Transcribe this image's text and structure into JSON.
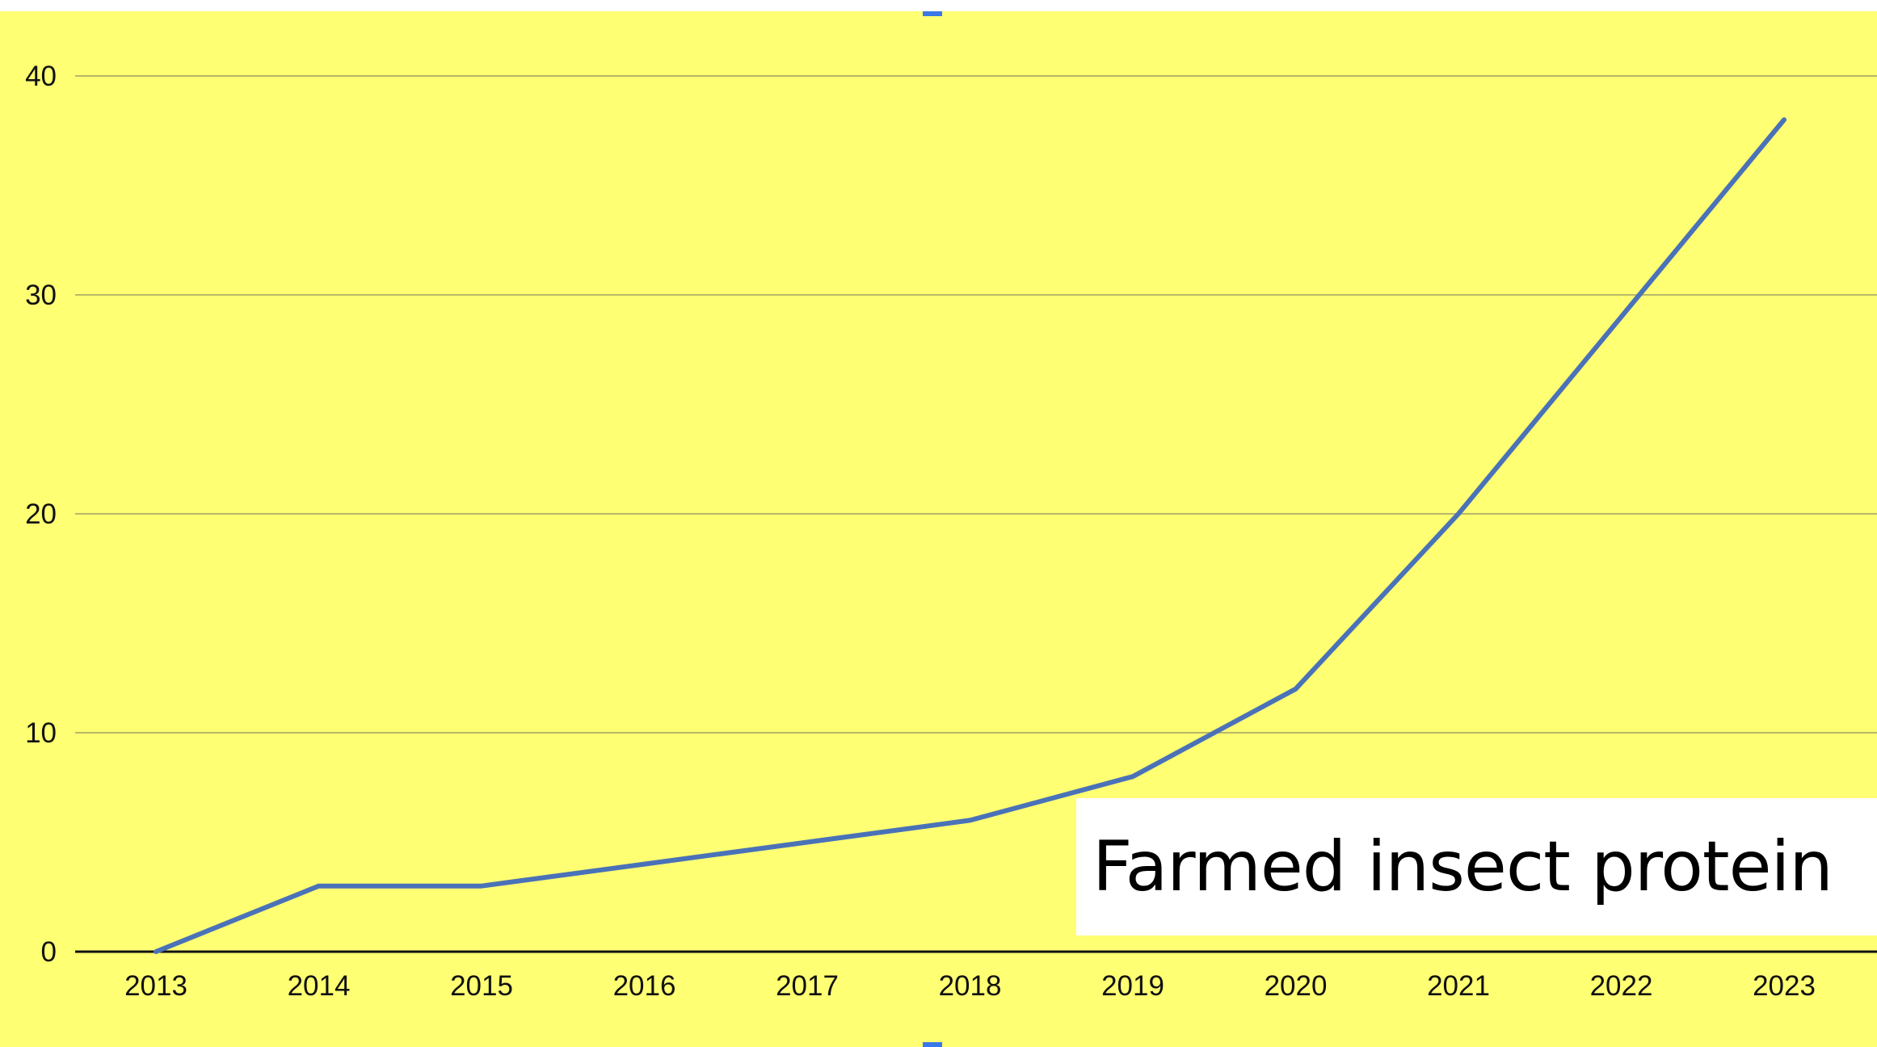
{
  "chart_data": {
    "type": "line",
    "title": "",
    "xlabel": "",
    "ylabel": "",
    "x": [
      "2013",
      "2014",
      "2015",
      "2016",
      "2017",
      "2018",
      "2019",
      "2020",
      "2021",
      "2022",
      "2023"
    ],
    "series": [
      {
        "values": [
          0,
          3,
          3,
          4,
          5,
          6,
          8,
          12,
          20,
          29,
          38
        ]
      }
    ],
    "ylim": [
      0,
      40
    ],
    "yticks": [
      0,
      10,
      20,
      30,
      40
    ],
    "grid": true,
    "legend": "none",
    "annotation": "Farmed insect protein",
    "colors": {
      "background": "#ffff73",
      "line": "#4a72b8",
      "grid": "#b8b86a",
      "axis": "#111111"
    }
  }
}
